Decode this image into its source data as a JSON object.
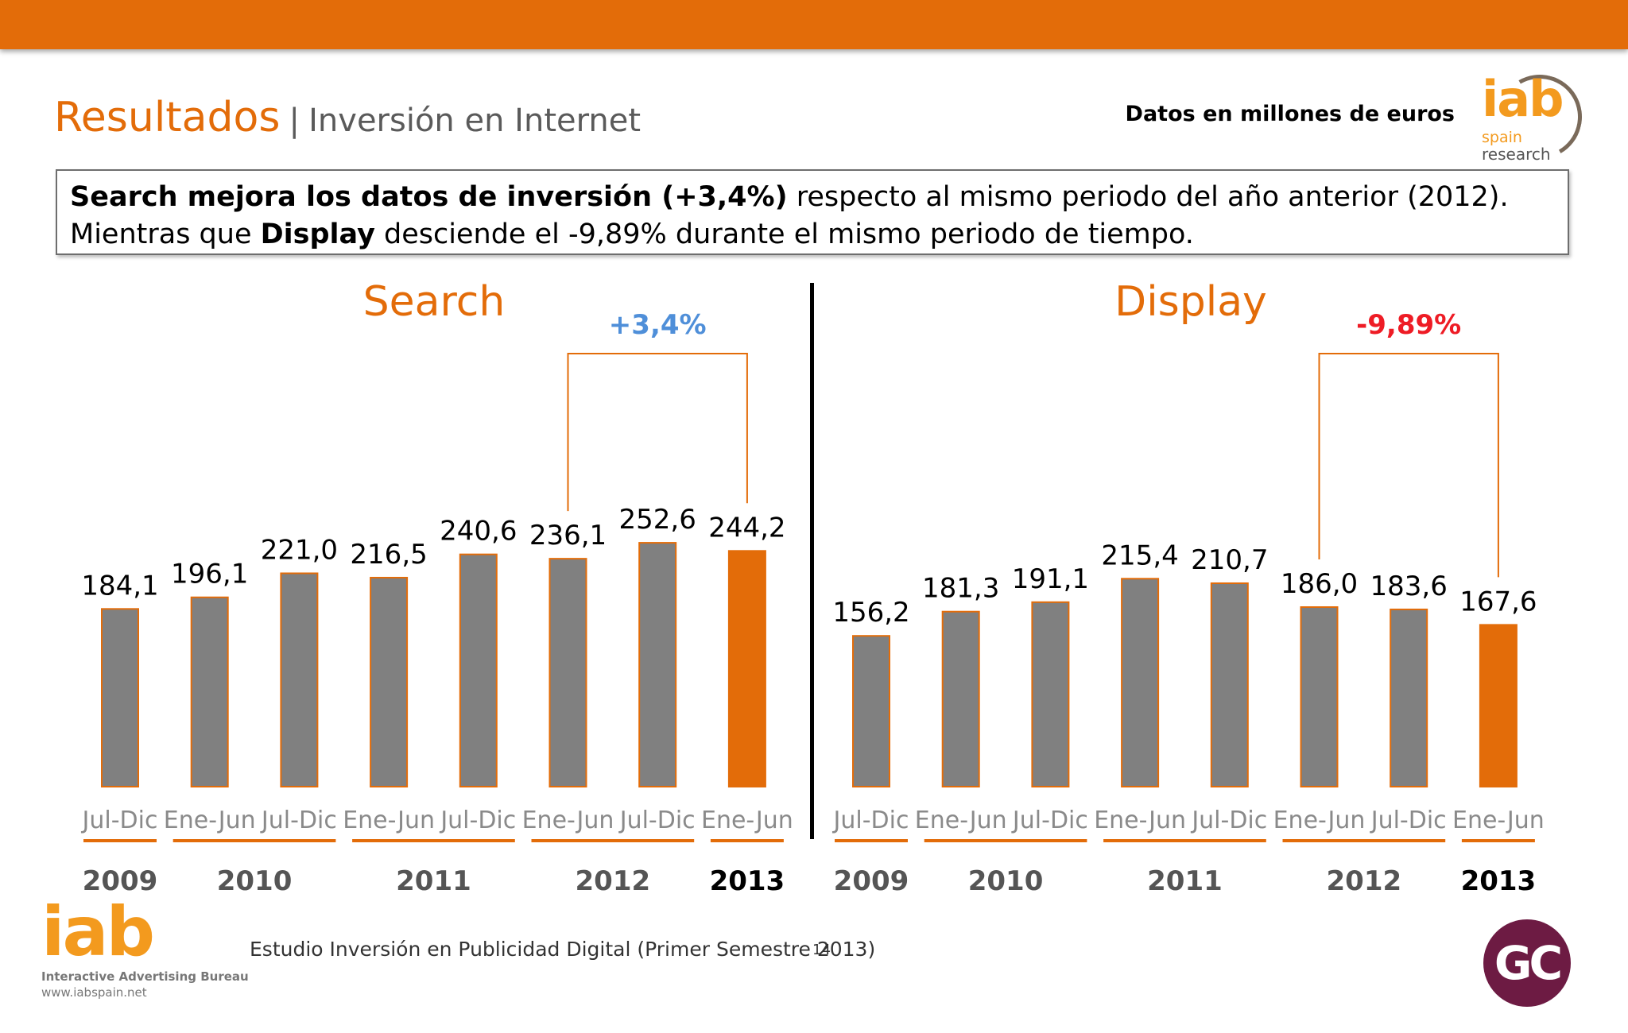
{
  "header": {
    "title_main": "Resultados",
    "title_sep": "|",
    "title_sub": "Inversión en Internet",
    "units": "Datos en millones de euros"
  },
  "logo_top": {
    "iab": "iab",
    "spain": "spain",
    "research": "research"
  },
  "callout": {
    "p1_bold": "Search mejora los datos de inversión (+3,4%)",
    "p1_rest": " respecto al mismo periodo del año anterior (2012). Mientras que ",
    "p2_bold": "Display",
    "p2_rest": " desciende el -9,89% durante el mismo periodo de tiempo."
  },
  "colors": {
    "accent": "#E36C09",
    "bar_gray": "#808080",
    "bar_edge": "#E36C09",
    "positive": "#4F8FD9",
    "negative": "#EE1C25",
    "tick": "#8a8a8a"
  },
  "chart_data": [
    {
      "type": "bar",
      "title": "Search",
      "categories": [
        "Jul-Dic",
        "Ene-Jun",
        "Jul-Dic",
        "Ene-Jun",
        "Jul-Dic",
        "Ene-Jun",
        "Jul-Dic",
        "Ene-Jun"
      ],
      "values": [
        184.1,
        196.1,
        221.0,
        216.5,
        240.6,
        236.1,
        252.6,
        244.2
      ],
      "value_labels": [
        "184,1",
        "196,1",
        "221,0",
        "216,5",
        "240,6",
        "236,1",
        "252,6",
        "244,2"
      ],
      "highlight_index": 7,
      "years": [
        {
          "label": "2009",
          "span": [
            0,
            0
          ],
          "bold": false
        },
        {
          "label": "2010",
          "span": [
            1,
            2
          ],
          "bold": false
        },
        {
          "label": "2011",
          "span": [
            3,
            4
          ],
          "bold": false
        },
        {
          "label": "2012",
          "span": [
            5,
            6
          ],
          "bold": false
        },
        {
          "label": "2013",
          "span": [
            7,
            7
          ],
          "bold": true
        }
      ],
      "annotation": {
        "text": "+3,4%",
        "from": 5,
        "to": 7,
        "tone": "positive"
      },
      "ylim": [
        0,
        260
      ]
    },
    {
      "type": "bar",
      "title": "Display",
      "categories": [
        "Jul-Dic",
        "Ene-Jun",
        "Jul-Dic",
        "Ene-Jun",
        "Jul-Dic",
        "Ene-Jun",
        "Jul-Dic",
        "Ene-Jun"
      ],
      "values": [
        156.2,
        181.3,
        191.1,
        215.4,
        210.7,
        186.0,
        183.6,
        167.6
      ],
      "value_labels": [
        "156,2",
        "181,3",
        "191,1",
        "215,4",
        "210,7",
        "186,0",
        "183,6",
        "167,6"
      ],
      "highlight_index": 7,
      "years": [
        {
          "label": "2009",
          "span": [
            0,
            0
          ],
          "bold": false
        },
        {
          "label": "2010",
          "span": [
            1,
            2
          ],
          "bold": false
        },
        {
          "label": "2011",
          "span": [
            3,
            4
          ],
          "bold": false
        },
        {
          "label": "2012",
          "span": [
            5,
            6
          ],
          "bold": false
        },
        {
          "label": "2013",
          "span": [
            7,
            7
          ],
          "bold": true
        }
      ],
      "annotation": {
        "text": "-9,89%",
        "from": 5,
        "to": 7,
        "tone": "negative"
      },
      "ylim": [
        0,
        260
      ]
    }
  ],
  "footer": {
    "iab": "iab",
    "bureau": "Interactive Advertising Bureau",
    "web": "www.iabspain.net",
    "study": "Estudio Inversión en Publicidad Digital (Primer Semestre 2013)",
    "page": "14",
    "badge": "GC"
  }
}
